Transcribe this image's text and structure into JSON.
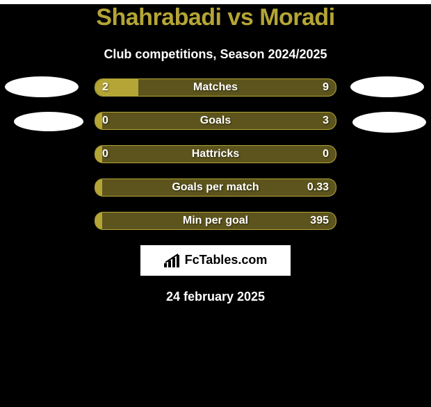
{
  "background_color": "#000000",
  "title": {
    "text": "Shahrabadi vs Moradi",
    "color": "#b4a536",
    "fontsize": 34
  },
  "subtitle": {
    "text": "Club competitions, Season 2024/2025",
    "color": "#ffffff",
    "fontsize": 18
  },
  "bar_style": {
    "track_color": "#5c541c",
    "fill_color": "#b4a536",
    "border_color": "#b4a536",
    "text_color": "#ffffff",
    "height": 24,
    "label_fontsize": 16,
    "value_fontsize": 16
  },
  "rows": [
    {
      "label": "Matches",
      "left": "2",
      "right": "9",
      "fill_pct": 18
    },
    {
      "label": "Goals",
      "left": "0",
      "right": "3",
      "fill_pct": 3
    },
    {
      "label": "Hattricks",
      "left": "0",
      "right": "0",
      "fill_pct": 3
    },
    {
      "label": "Goals per match",
      "left": "",
      "right": "0.33",
      "fill_pct": 3
    },
    {
      "label": "Min per goal",
      "left": "",
      "right": "395",
      "fill_pct": 3
    }
  ],
  "logo": {
    "text": "FcTables.com",
    "fontsize": 18
  },
  "date": {
    "text": "24 february 2025",
    "color": "#ffffff",
    "fontsize": 18
  }
}
